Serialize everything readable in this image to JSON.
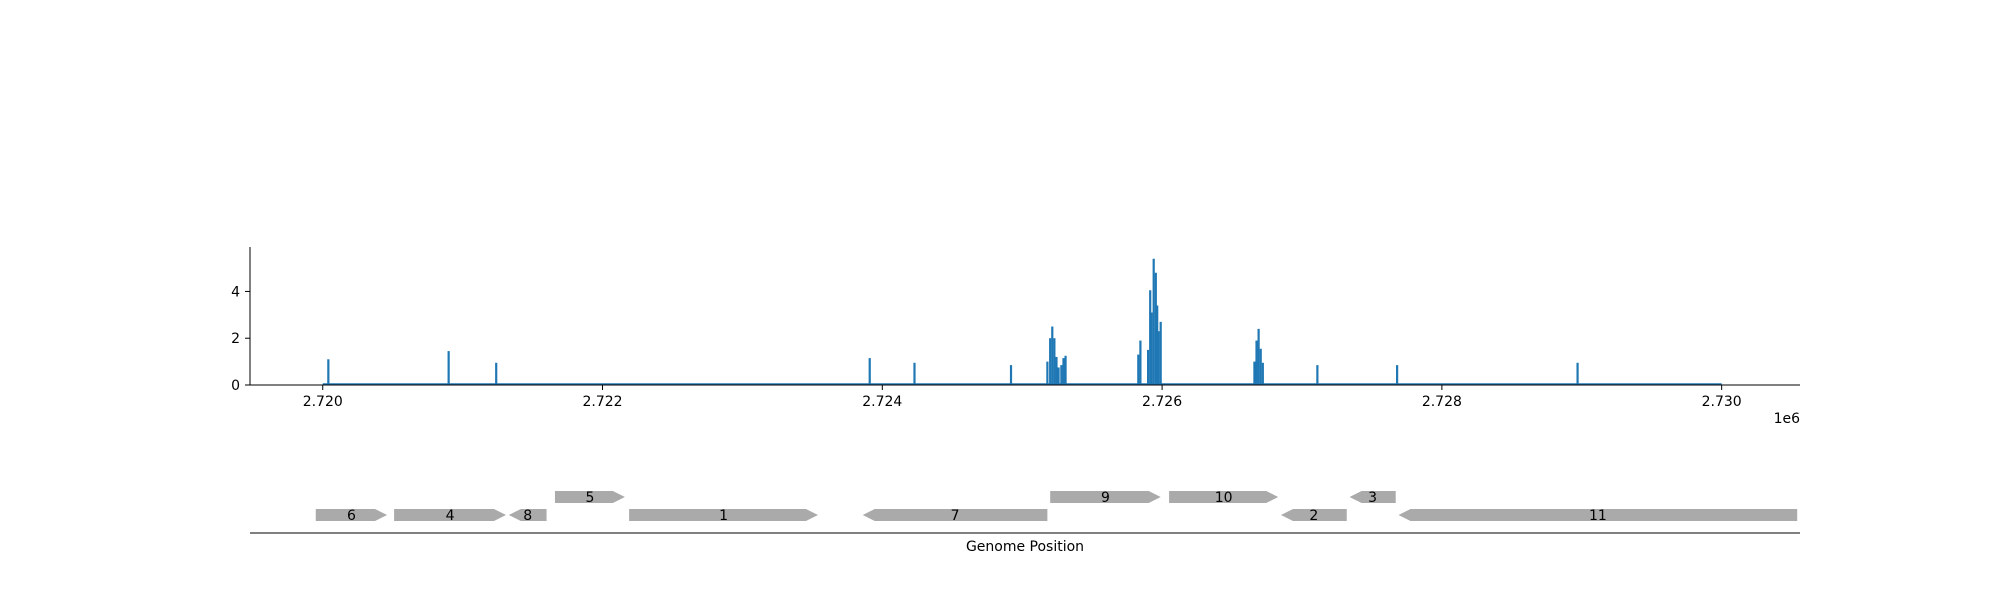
{
  "chart_data": [
    {
      "type": "bar",
      "title": "",
      "xlabel": "",
      "ylabel": "",
      "x_offset_label": "1e6",
      "xlim": [
        2719480,
        2730560
      ],
      "ylim": [
        0,
        5.9
      ],
      "grid": false,
      "color": "#1f77b4",
      "x_ticks": [
        2720000,
        2722000,
        2724000,
        2726000,
        2728000,
        2730000
      ],
      "x_tick_labels": [
        "2.720",
        "2.722",
        "2.724",
        "2.726",
        "2.728",
        "2.730"
      ],
      "y_ticks": [
        0,
        2,
        4
      ],
      "y_tick_labels": [
        "0",
        "2",
        "4"
      ],
      "baseline_extent": [
        2720000,
        2730000
      ],
      "x": [
        2720040,
        2720900,
        2721240,
        2723910,
        2724230,
        2724920,
        2725180,
        2725200,
        2725215,
        2725230,
        2725245,
        2725260,
        2725280,
        2725295,
        2725310,
        2725830,
        2725845,
        2725900,
        2725915,
        2725925,
        2725940,
        2725955,
        2725965,
        2725975,
        2725990,
        2726660,
        2726675,
        2726690,
        2726705,
        2726720,
        2727110,
        2727680,
        2728970
      ],
      "values": [
        1.1,
        1.45,
        0.95,
        1.15,
        0.95,
        0.85,
        1.0,
        2.0,
        2.5,
        2.0,
        1.2,
        0.75,
        0.85,
        1.15,
        1.25,
        1.3,
        1.9,
        1.5,
        4.05,
        3.1,
        5.4,
        4.8,
        3.4,
        2.3,
        2.7,
        1.0,
        1.9,
        2.4,
        1.55,
        0.95,
        0.85,
        0.85,
        0.95
      ]
    },
    {
      "type": "gene_track",
      "xlabel": "Genome Position",
      "color": "#aaaaaa",
      "genes": [
        {
          "label": "6",
          "start": 2719950,
          "end": 2720460,
          "strand": "+",
          "row": 0
        },
        {
          "label": "4",
          "start": 2720510,
          "end": 2721310,
          "strand": "+",
          "row": 0
        },
        {
          "label": "8",
          "start": 2721330,
          "end": 2721600,
          "strand": "-",
          "row": 0
        },
        {
          "label": "5",
          "start": 2721660,
          "end": 2722160,
          "strand": "+",
          "row": 1
        },
        {
          "label": "1",
          "start": 2722190,
          "end": 2723540,
          "strand": "+",
          "row": 0
        },
        {
          "label": "7",
          "start": 2723860,
          "end": 2725180,
          "strand": "-",
          "row": 0
        },
        {
          "label": "9",
          "start": 2725200,
          "end": 2725990,
          "strand": "+",
          "row": 1
        },
        {
          "label": "10",
          "start": 2726050,
          "end": 2726830,
          "strand": "+",
          "row": 1
        },
        {
          "label": "2",
          "start": 2726850,
          "end": 2727320,
          "strand": "-",
          "row": 0
        },
        {
          "label": "3",
          "start": 2727340,
          "end": 2727670,
          "strand": "-",
          "row": 1
        },
        {
          "label": "11",
          "start": 2727690,
          "end": 2730540,
          "strand": "-",
          "row": 0
        }
      ]
    }
  ]
}
